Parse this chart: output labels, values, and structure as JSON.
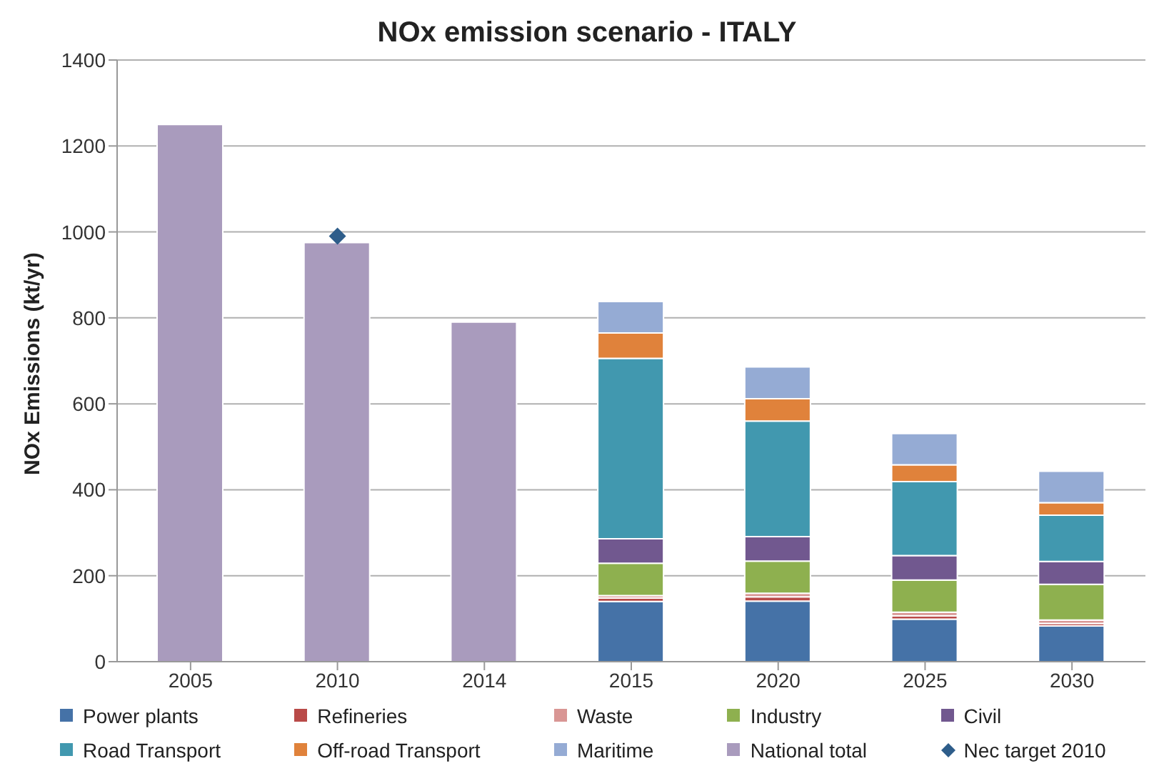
{
  "chart_data": {
    "type": "bar",
    "title": "NOx emission scenario - ITALY",
    "ylabel": "NOx Emissions (kt/yr)",
    "categories": [
      "2005",
      "2010",
      "2014",
      "2015",
      "2020",
      "2025",
      "2030"
    ],
    "stacked": true,
    "ylim": [
      0,
      1400
    ],
    "yticks": [
      0,
      200,
      400,
      600,
      800,
      1000,
      1200,
      1400
    ],
    "grid": "y",
    "legend": "bottom",
    "series": [
      {
        "name": "Power plants",
        "color": "#4572a7",
        "values": [
          null,
          null,
          null,
          140,
          141,
          99,
          83
        ]
      },
      {
        "name": "Refineries",
        "color": "#b94a48",
        "values": [
          null,
          null,
          null,
          8,
          10,
          8,
          6
        ]
      },
      {
        "name": "Waste",
        "color": "#d99694",
        "values": [
          null,
          null,
          null,
          6,
          8,
          8,
          8
        ]
      },
      {
        "name": "Industry",
        "color": "#8eb04f",
        "values": [
          null,
          null,
          null,
          75,
          75,
          75,
          83
        ]
      },
      {
        "name": "Civil",
        "color": "#71588f",
        "values": [
          null,
          null,
          null,
          57,
          57,
          57,
          53
        ]
      },
      {
        "name": "Road Transport",
        "color": "#4198af",
        "values": [
          null,
          null,
          null,
          420,
          269,
          172,
          108
        ]
      },
      {
        "name": "Off-road Transport",
        "color": "#e0823b",
        "values": [
          null,
          null,
          null,
          59,
          52,
          39,
          29
        ]
      },
      {
        "name": "Maritime",
        "color": "#95abd4",
        "values": [
          null,
          null,
          null,
          73,
          74,
          73,
          73
        ]
      },
      {
        "name": "National total",
        "color": "#a99bbd",
        "values": [
          1250,
          975,
          790,
          null,
          null,
          null,
          null
        ]
      },
      {
        "name": "Nec target 2010",
        "type": "scatter",
        "marker": "diamond",
        "color": "#2e5d8a",
        "values": [
          null,
          990,
          null,
          null,
          null,
          null,
          null
        ]
      }
    ]
  }
}
